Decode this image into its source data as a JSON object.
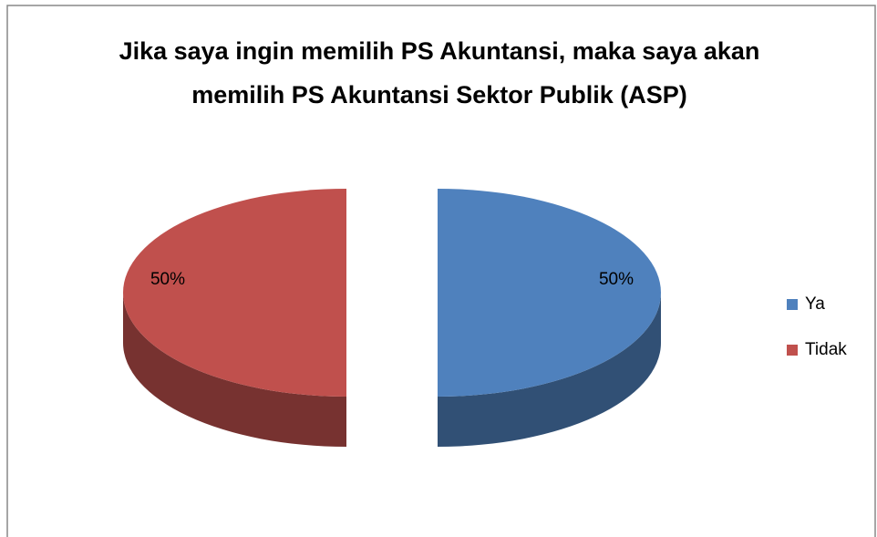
{
  "chart_data": {
    "type": "pie",
    "title": "Jika saya ingin memilih PS Akuntansi, maka saya akan memilih PS Akuntansi Sektor Publik (ASP)",
    "categories": [
      "Ya",
      "Tidak"
    ],
    "values": [
      50,
      50
    ],
    "value_labels": [
      "50%",
      "50%"
    ],
    "colors": [
      "#4f81bd",
      "#c0504d"
    ],
    "legend": "right"
  }
}
